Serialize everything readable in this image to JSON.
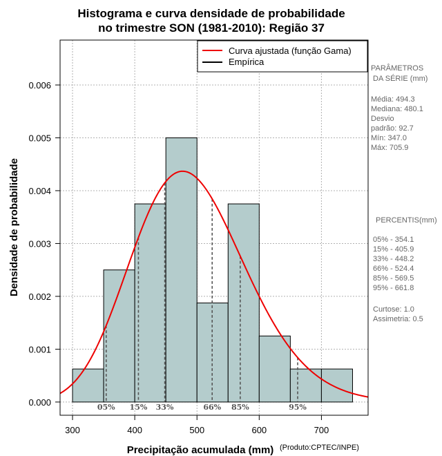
{
  "chart_data": {
    "type": "histogram",
    "title_line1": "Histograma e curva densidade de probabilidade",
    "title_line2": "no trimestre SON (1981-2010): Região 37",
    "xlabel": "Precipitação acumulada (mm)",
    "ylabel": "Densidade de probabilidade",
    "credit": "(Produto:CPTEC/INPE)",
    "xlim": [
      280,
      775
    ],
    "ylim": [
      -0.00025,
      0.00685
    ],
    "x_ticks": [
      300,
      400,
      500,
      600,
      700
    ],
    "y_ticks": [
      0.0,
      0.001,
      0.002,
      0.003,
      0.004,
      0.005,
      0.006
    ],
    "y_tick_labels": [
      "0.000",
      "0.001",
      "0.002",
      "0.003",
      "0.004",
      "0.005",
      "0.006"
    ],
    "grid": true,
    "bins": [
      {
        "from": 300,
        "to": 350,
        "density": 0.000625
      },
      {
        "from": 350,
        "to": 400,
        "density": 0.0025
      },
      {
        "from": 400,
        "to": 450,
        "density": 0.00375
      },
      {
        "from": 450,
        "to": 500,
        "density": 0.005
      },
      {
        "from": 500,
        "to": 550,
        "density": 0.001875
      },
      {
        "from": 550,
        "to": 600,
        "density": 0.00375
      },
      {
        "from": 600,
        "to": 650,
        "density": 0.00125
      },
      {
        "from": 650,
        "to": 700,
        "density": 0.000625
      },
      {
        "from": 700,
        "to": 750,
        "density": 0.000625
      }
    ],
    "bar_color": "#b4cccc",
    "curve_color": "#ee0000",
    "gamma_fit": {
      "mean": 494.3,
      "sd": 92.7
    },
    "percentile_lines": [
      {
        "label": "05%",
        "value": 354.1
      },
      {
        "label": "15%",
        "value": 405.9
      },
      {
        "label": "33%",
        "value": 448.2
      },
      {
        "label": "66%",
        "value": 524.4
      },
      {
        "label": "85%",
        "value": 569.5
      },
      {
        "label": "95%",
        "value": 661.8
      }
    ],
    "legend": {
      "position": "top-right",
      "entries": [
        {
          "label": "Curva ajustada (função Gama)",
          "color": "#ee0000"
        },
        {
          "label": "Empírica",
          "color": "#000000"
        }
      ]
    }
  },
  "side_panel": {
    "params_title_1": "PARÂMETROS",
    "params_title_2": "DA SÉRIE (mm)",
    "media": "Média:  494.3",
    "mediana": "Mediana:  480.1",
    "desvio": "Desvio",
    "padrao": "padrão:  92.7",
    "min": "Mín:  347.0",
    "max": "Máx:  705.9",
    "percentis_title": "PERCENTIS(mm)",
    "percentis": [
      "05% -   354.1",
      "15% -   405.9",
      "33% -   448.2",
      "66% -   524.4",
      "85% -   569.5",
      "95% -   661.8"
    ],
    "curtose": "Curtose:  1.0",
    "assimetria": "Assimetria:  0.5"
  }
}
